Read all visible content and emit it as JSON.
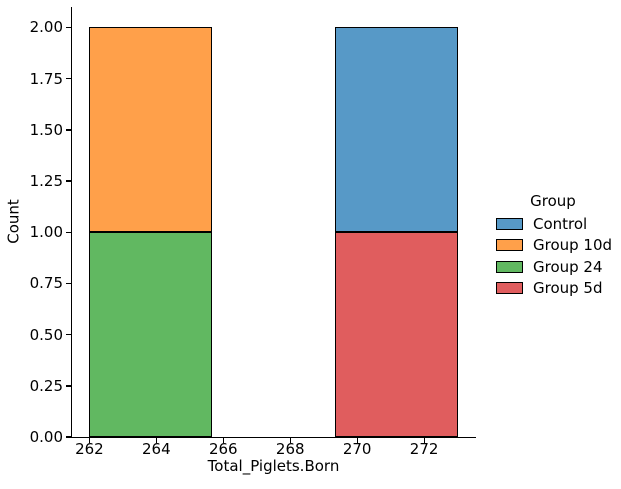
{
  "figure": {
    "background": "#ffffff"
  },
  "chart_data": {
    "type": "bar",
    "subtype": "stacked-histogram",
    "title": "",
    "xlabel": "Total_Piglets.Born",
    "ylabel": "Count",
    "xlim": [
      261.45,
      273.55
    ],
    "ylim": [
      0,
      2.1
    ],
    "grid": false,
    "x_ticks": [
      262,
      264,
      266,
      268,
      270,
      272
    ],
    "x_tick_labels": [
      "262",
      "264",
      "266",
      "268",
      "270",
      "272"
    ],
    "y_ticks": [
      0,
      0.25,
      0.5,
      0.75,
      1,
      1.25,
      1.5,
      1.75,
      2
    ],
    "y_tick_labels": [
      "0.00",
      "0.25",
      "0.50",
      "0.75",
      "1.00",
      "1.25",
      "1.50",
      "1.75",
      "2.00"
    ],
    "bin_edges": [
      262,
      265.667,
      269.333,
      273
    ],
    "bar_edge_color": "#000000",
    "bars": [
      {
        "x_from": 262,
        "x_to": 265.667,
        "segments": [
          {
            "group": "Group 24",
            "y_from": 0,
            "y_to": 1,
            "count": 1
          },
          {
            "group": "Group 10d",
            "y_from": 1,
            "y_to": 2,
            "count": 1
          }
        ]
      },
      {
        "x_from": 269.333,
        "x_to": 273,
        "segments": [
          {
            "group": "Group 5d",
            "y_from": 0,
            "y_to": 1,
            "count": 1
          },
          {
            "group": "Control",
            "y_from": 1,
            "y_to": 2,
            "count": 1
          }
        ]
      }
    ],
    "legend": {
      "title": "Group",
      "position": "center-right",
      "entries": [
        {
          "label": "Control",
          "color": "#5799c7"
        },
        {
          "label": "Group 10d",
          "color": "#ffa04a"
        },
        {
          "label": "Group 24",
          "color": "#61b861"
        },
        {
          "label": "Group 5d",
          "color": "#e05d5e"
        }
      ]
    }
  }
}
